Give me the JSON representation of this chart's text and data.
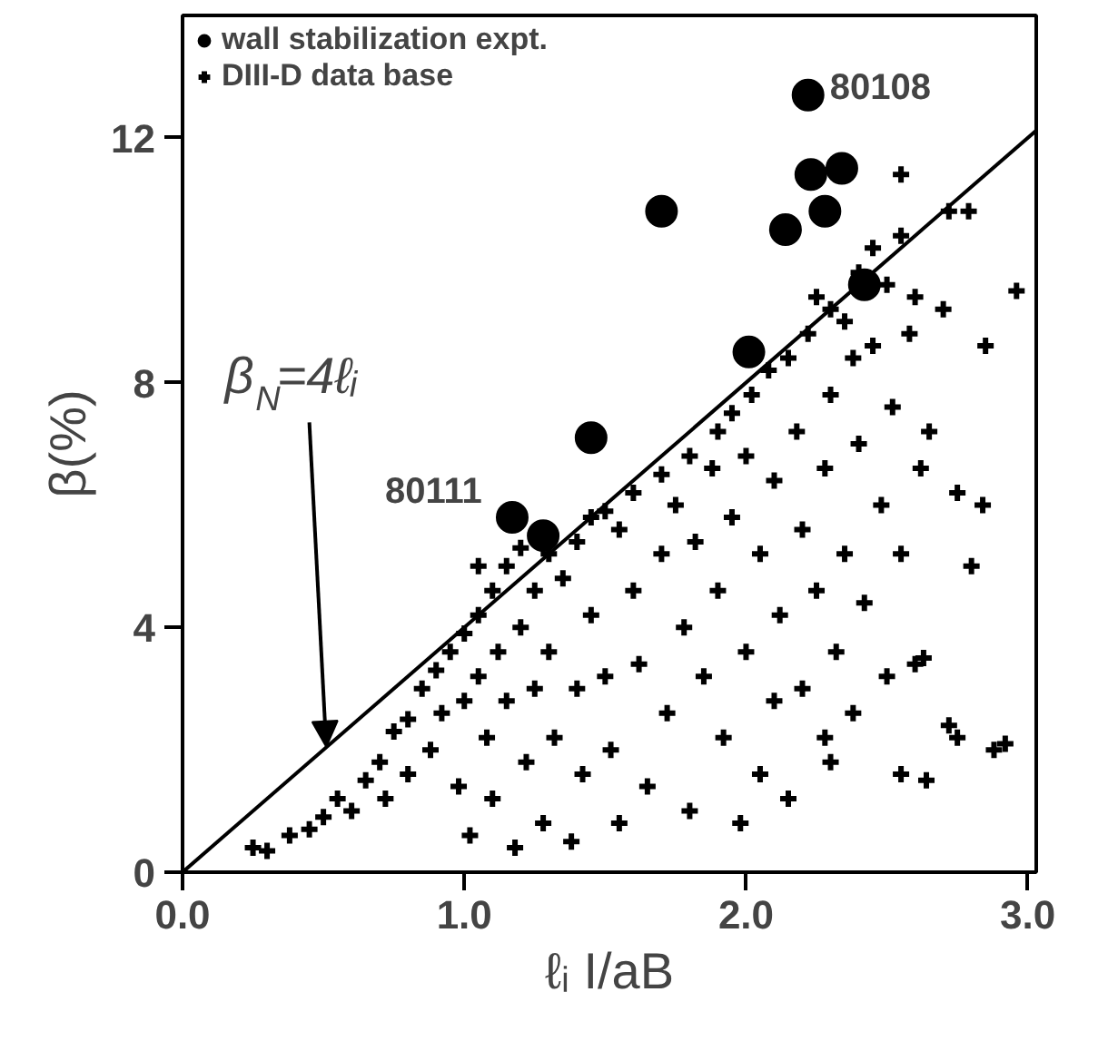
{
  "chart_data": {
    "type": "scatter",
    "xlabel": "ℓᵢ I/aB",
    "ylabel": "β(%)",
    "xlim": [
      0,
      3.03
    ],
    "ylim": [
      0,
      14
    ],
    "xticks": [
      {
        "value": 0,
        "label": "0.0"
      },
      {
        "value": 1,
        "label": "1.0"
      },
      {
        "value": 2,
        "label": "2.0"
      },
      {
        "value": 3,
        "label": "3.0"
      }
    ],
    "yticks": [
      0,
      4,
      8,
      12
    ],
    "grid": false,
    "legend": "top left",
    "series": [
      {
        "name": "wall stabilization expt.",
        "color": "#000000",
        "marker": "circle",
        "x": [
          2.22,
          2.23,
          2.34,
          2.28,
          2.14,
          1.7,
          2.01,
          1.45,
          2.42,
          1.17,
          1.28
        ],
        "values": [
          12.7,
          11.4,
          11.5,
          10.8,
          10.5,
          10.8,
          8.5,
          7.1,
          9.6,
          5.8,
          5.5
        ]
      },
      {
        "name": "DIII-D data base",
        "color": "#000000",
        "marker": "cross",
        "x": [
          0.25,
          0.3,
          0.38,
          0.45,
          0.5,
          0.55,
          0.6,
          0.65,
          0.7,
          0.72,
          0.75,
          0.8,
          0.8,
          0.85,
          0.88,
          0.9,
          0.92,
          0.95,
          0.98,
          1.0,
          1.0,
          1.02,
          1.05,
          1.05,
          1.08,
          1.1,
          1.1,
          1.12,
          1.15,
          1.15,
          1.18,
          1.2,
          1.2,
          1.22,
          1.25,
          1.25,
          1.28,
          1.3,
          1.3,
          1.32,
          1.35,
          1.38,
          1.4,
          1.4,
          1.42,
          1.45,
          1.45,
          1.5,
          1.5,
          1.52,
          1.55,
          1.55,
          1.6,
          1.6,
          1.62,
          1.65,
          1.7,
          1.7,
          1.72,
          1.75,
          1.78,
          1.8,
          1.8,
          1.82,
          1.85,
          1.88,
          1.9,
          1.9,
          1.92,
          1.95,
          1.95,
          1.98,
          2.0,
          2.0,
          2.02,
          2.05,
          2.05,
          2.08,
          2.1,
          2.1,
          2.12,
          2.15,
          2.15,
          2.18,
          2.2,
          2.2,
          2.22,
          2.25,
          2.25,
          2.28,
          2.28,
          2.3,
          2.3,
          2.32,
          2.35,
          2.35,
          2.38,
          2.38,
          2.4,
          2.4,
          2.42,
          2.45,
          2.45,
          2.48,
          2.5,
          2.5,
          2.52,
          2.55,
          2.55,
          2.58,
          2.6,
          2.6,
          2.62,
          2.65,
          2.7,
          2.72,
          2.75,
          2.8,
          2.85,
          2.55,
          2.72,
          2.88,
          2.3,
          1.05,
          2.55,
          2.96,
          2.79,
          2.84,
          2.92,
          2.75,
          2.64,
          2.63
        ],
        "values": [
          0.4,
          0.35,
          0.6,
          0.7,
          0.9,
          1.2,
          1.0,
          1.5,
          1.8,
          1.2,
          2.3,
          2.5,
          1.6,
          3.0,
          2.0,
          3.3,
          2.6,
          3.6,
          1.4,
          3.9,
          2.8,
          0.6,
          4.2,
          3.2,
          2.2,
          4.6,
          1.2,
          3.6,
          5.0,
          2.8,
          0.4,
          5.3,
          4.0,
          1.8,
          4.6,
          3.0,
          0.8,
          5.2,
          3.6,
          2.2,
          4.8,
          0.5,
          5.4,
          3.0,
          1.6,
          5.8,
          4.2,
          5.9,
          3.2,
          2.0,
          5.6,
          0.8,
          6.2,
          4.6,
          3.4,
          1.4,
          6.5,
          5.2,
          2.6,
          6.0,
          4.0,
          6.8,
          1.0,
          5.4,
          3.2,
          6.6,
          7.2,
          4.6,
          2.2,
          7.5,
          5.8,
          0.8,
          6.8,
          3.6,
          7.8,
          5.2,
          1.6,
          8.2,
          6.4,
          2.8,
          4.2,
          8.4,
          1.2,
          7.2,
          5.6,
          3.0,
          8.8,
          9.4,
          4.6,
          6.6,
          2.2,
          9.2,
          7.8,
          3.6,
          9.0,
          5.2,
          8.4,
          2.6,
          9.8,
          7.0,
          4.4,
          10.2,
          8.6,
          6.0,
          9.6,
          3.2,
          7.6,
          10.4,
          5.2,
          8.8,
          9.4,
          3.4,
          6.6,
          7.2,
          9.2,
          10.8,
          6.2,
          5.0,
          8.6,
          1.6,
          2.4,
          2.0,
          1.8,
          5.0,
          11.4,
          9.5,
          10.8,
          6.0,
          2.1,
          2.2,
          1.5,
          3.5
        ]
      },
      {
        "type": "line",
        "color": "#000000",
        "x": [
          0,
          3.03
        ],
        "values": [
          0,
          12.12
        ]
      }
    ],
    "annotations": [
      {
        "text": "80108",
        "x": 2.22,
        "y": 12.7
      },
      {
        "text": "80111",
        "x": 1.17,
        "y": 5.8
      },
      {
        "text": "β$_{N}$=4ℓᵢ",
        "x": 0.51,
        "y": 2.05
      }
    ]
  }
}
